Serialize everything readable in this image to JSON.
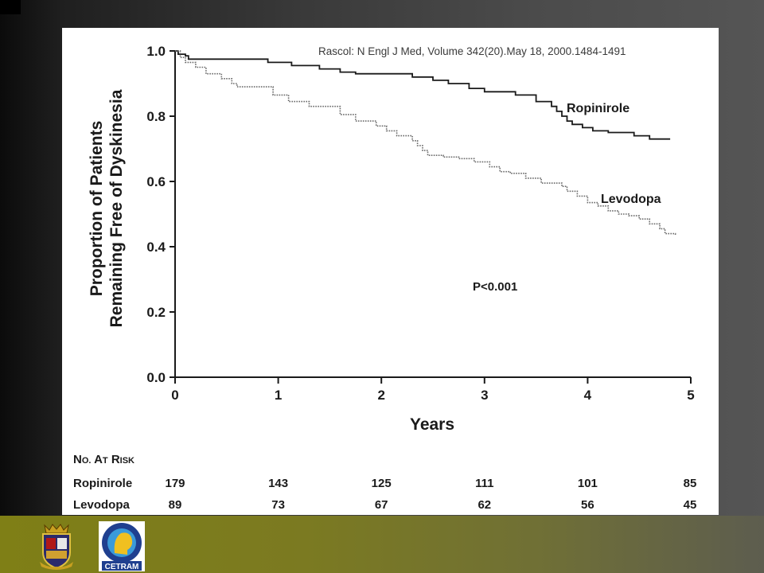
{
  "citation": "Rascol: N Engl J Med, Volume 342(20).May 18, 2000.1484-1491",
  "colors": {
    "background": "#3a3a3a",
    "bottom_band": "#7b7a21",
    "panel": "#ffffff",
    "ink": "#1a1a1a",
    "levodopa_line": "#6a6a6a"
  },
  "logos": [
    {
      "icon": "university-shield-icon"
    },
    {
      "icon": "cetram-logo-icon",
      "text": "CETRAM"
    }
  ],
  "chart_data": {
    "type": "line",
    "subtype": "kaplan-meier step",
    "ylabel_line1": "Proportion of Patients",
    "ylabel_line2": "Remaining Free of Dyskinesia",
    "xlabel": "Years",
    "xlim": [
      0,
      5
    ],
    "ylim": [
      0,
      1.0
    ],
    "x_ticks": [
      "0",
      "1",
      "2",
      "3",
      "4",
      "5"
    ],
    "y_ticks": [
      "0.0",
      "0.2",
      "0.4",
      "0.6",
      "0.8",
      "1.0"
    ],
    "grid": false,
    "annotation": "P<0.001",
    "series": [
      {
        "name": "Ropinirole",
        "style": "solid",
        "points": [
          [
            0,
            1.0
          ],
          [
            0.03,
            0.99
          ],
          [
            0.1,
            0.985
          ],
          [
            0.13,
            0.975
          ],
          [
            0.9,
            0.965
          ],
          [
            1.13,
            0.955
          ],
          [
            1.4,
            0.945
          ],
          [
            1.6,
            0.935
          ],
          [
            1.75,
            0.93
          ],
          [
            2.3,
            0.92
          ],
          [
            2.5,
            0.91
          ],
          [
            2.65,
            0.9
          ],
          [
            2.85,
            0.885
          ],
          [
            3.0,
            0.875
          ],
          [
            3.3,
            0.865
          ],
          [
            3.5,
            0.845
          ],
          [
            3.6,
            0.845
          ],
          [
            3.65,
            0.83
          ],
          [
            3.7,
            0.815
          ],
          [
            3.75,
            0.8
          ],
          [
            3.8,
            0.785
          ],
          [
            3.85,
            0.775
          ],
          [
            3.95,
            0.765
          ],
          [
            4.05,
            0.755
          ],
          [
            4.2,
            0.75
          ],
          [
            4.45,
            0.74
          ],
          [
            4.6,
            0.73
          ],
          [
            4.8,
            0.73
          ]
        ]
      },
      {
        "name": "Levodopa",
        "style": "dotted",
        "points": [
          [
            0,
            1.0
          ],
          [
            0.05,
            0.98
          ],
          [
            0.1,
            0.965
          ],
          [
            0.2,
            0.95
          ],
          [
            0.3,
            0.93
          ],
          [
            0.45,
            0.915
          ],
          [
            0.55,
            0.9
          ],
          [
            0.6,
            0.89
          ],
          [
            0.95,
            0.865
          ],
          [
            1.1,
            0.845
          ],
          [
            1.3,
            0.83
          ],
          [
            1.6,
            0.805
          ],
          [
            1.75,
            0.785
          ],
          [
            1.95,
            0.77
          ],
          [
            2.05,
            0.755
          ],
          [
            2.15,
            0.74
          ],
          [
            2.3,
            0.725
          ],
          [
            2.35,
            0.71
          ],
          [
            2.4,
            0.695
          ],
          [
            2.45,
            0.68
          ],
          [
            2.6,
            0.675
          ],
          [
            2.75,
            0.67
          ],
          [
            2.9,
            0.66
          ],
          [
            3.05,
            0.645
          ],
          [
            3.15,
            0.63
          ],
          [
            3.25,
            0.625
          ],
          [
            3.4,
            0.61
          ],
          [
            3.55,
            0.595
          ],
          [
            3.75,
            0.585
          ],
          [
            3.8,
            0.57
          ],
          [
            3.9,
            0.555
          ],
          [
            4.0,
            0.535
          ],
          [
            4.1,
            0.525
          ],
          [
            4.2,
            0.51
          ],
          [
            4.3,
            0.5
          ],
          [
            4.4,
            0.495
          ],
          [
            4.5,
            0.485
          ],
          [
            4.6,
            0.47
          ],
          [
            4.7,
            0.455
          ],
          [
            4.75,
            0.44
          ],
          [
            4.85,
            0.435
          ]
        ]
      }
    ],
    "series_labels": [
      "Ropinirole",
      "Levodopa"
    ],
    "at_risk": {
      "title": "No. at Risk",
      "rows": [
        {
          "name": "Ropinirole",
          "values": [
            "179",
            "143",
            "125",
            "111",
            "101",
            "85"
          ]
        },
        {
          "name": "Levodopa",
          "values": [
            "89",
            "73",
            "67",
            "62",
            "56",
            "45"
          ]
        }
      ]
    }
  }
}
